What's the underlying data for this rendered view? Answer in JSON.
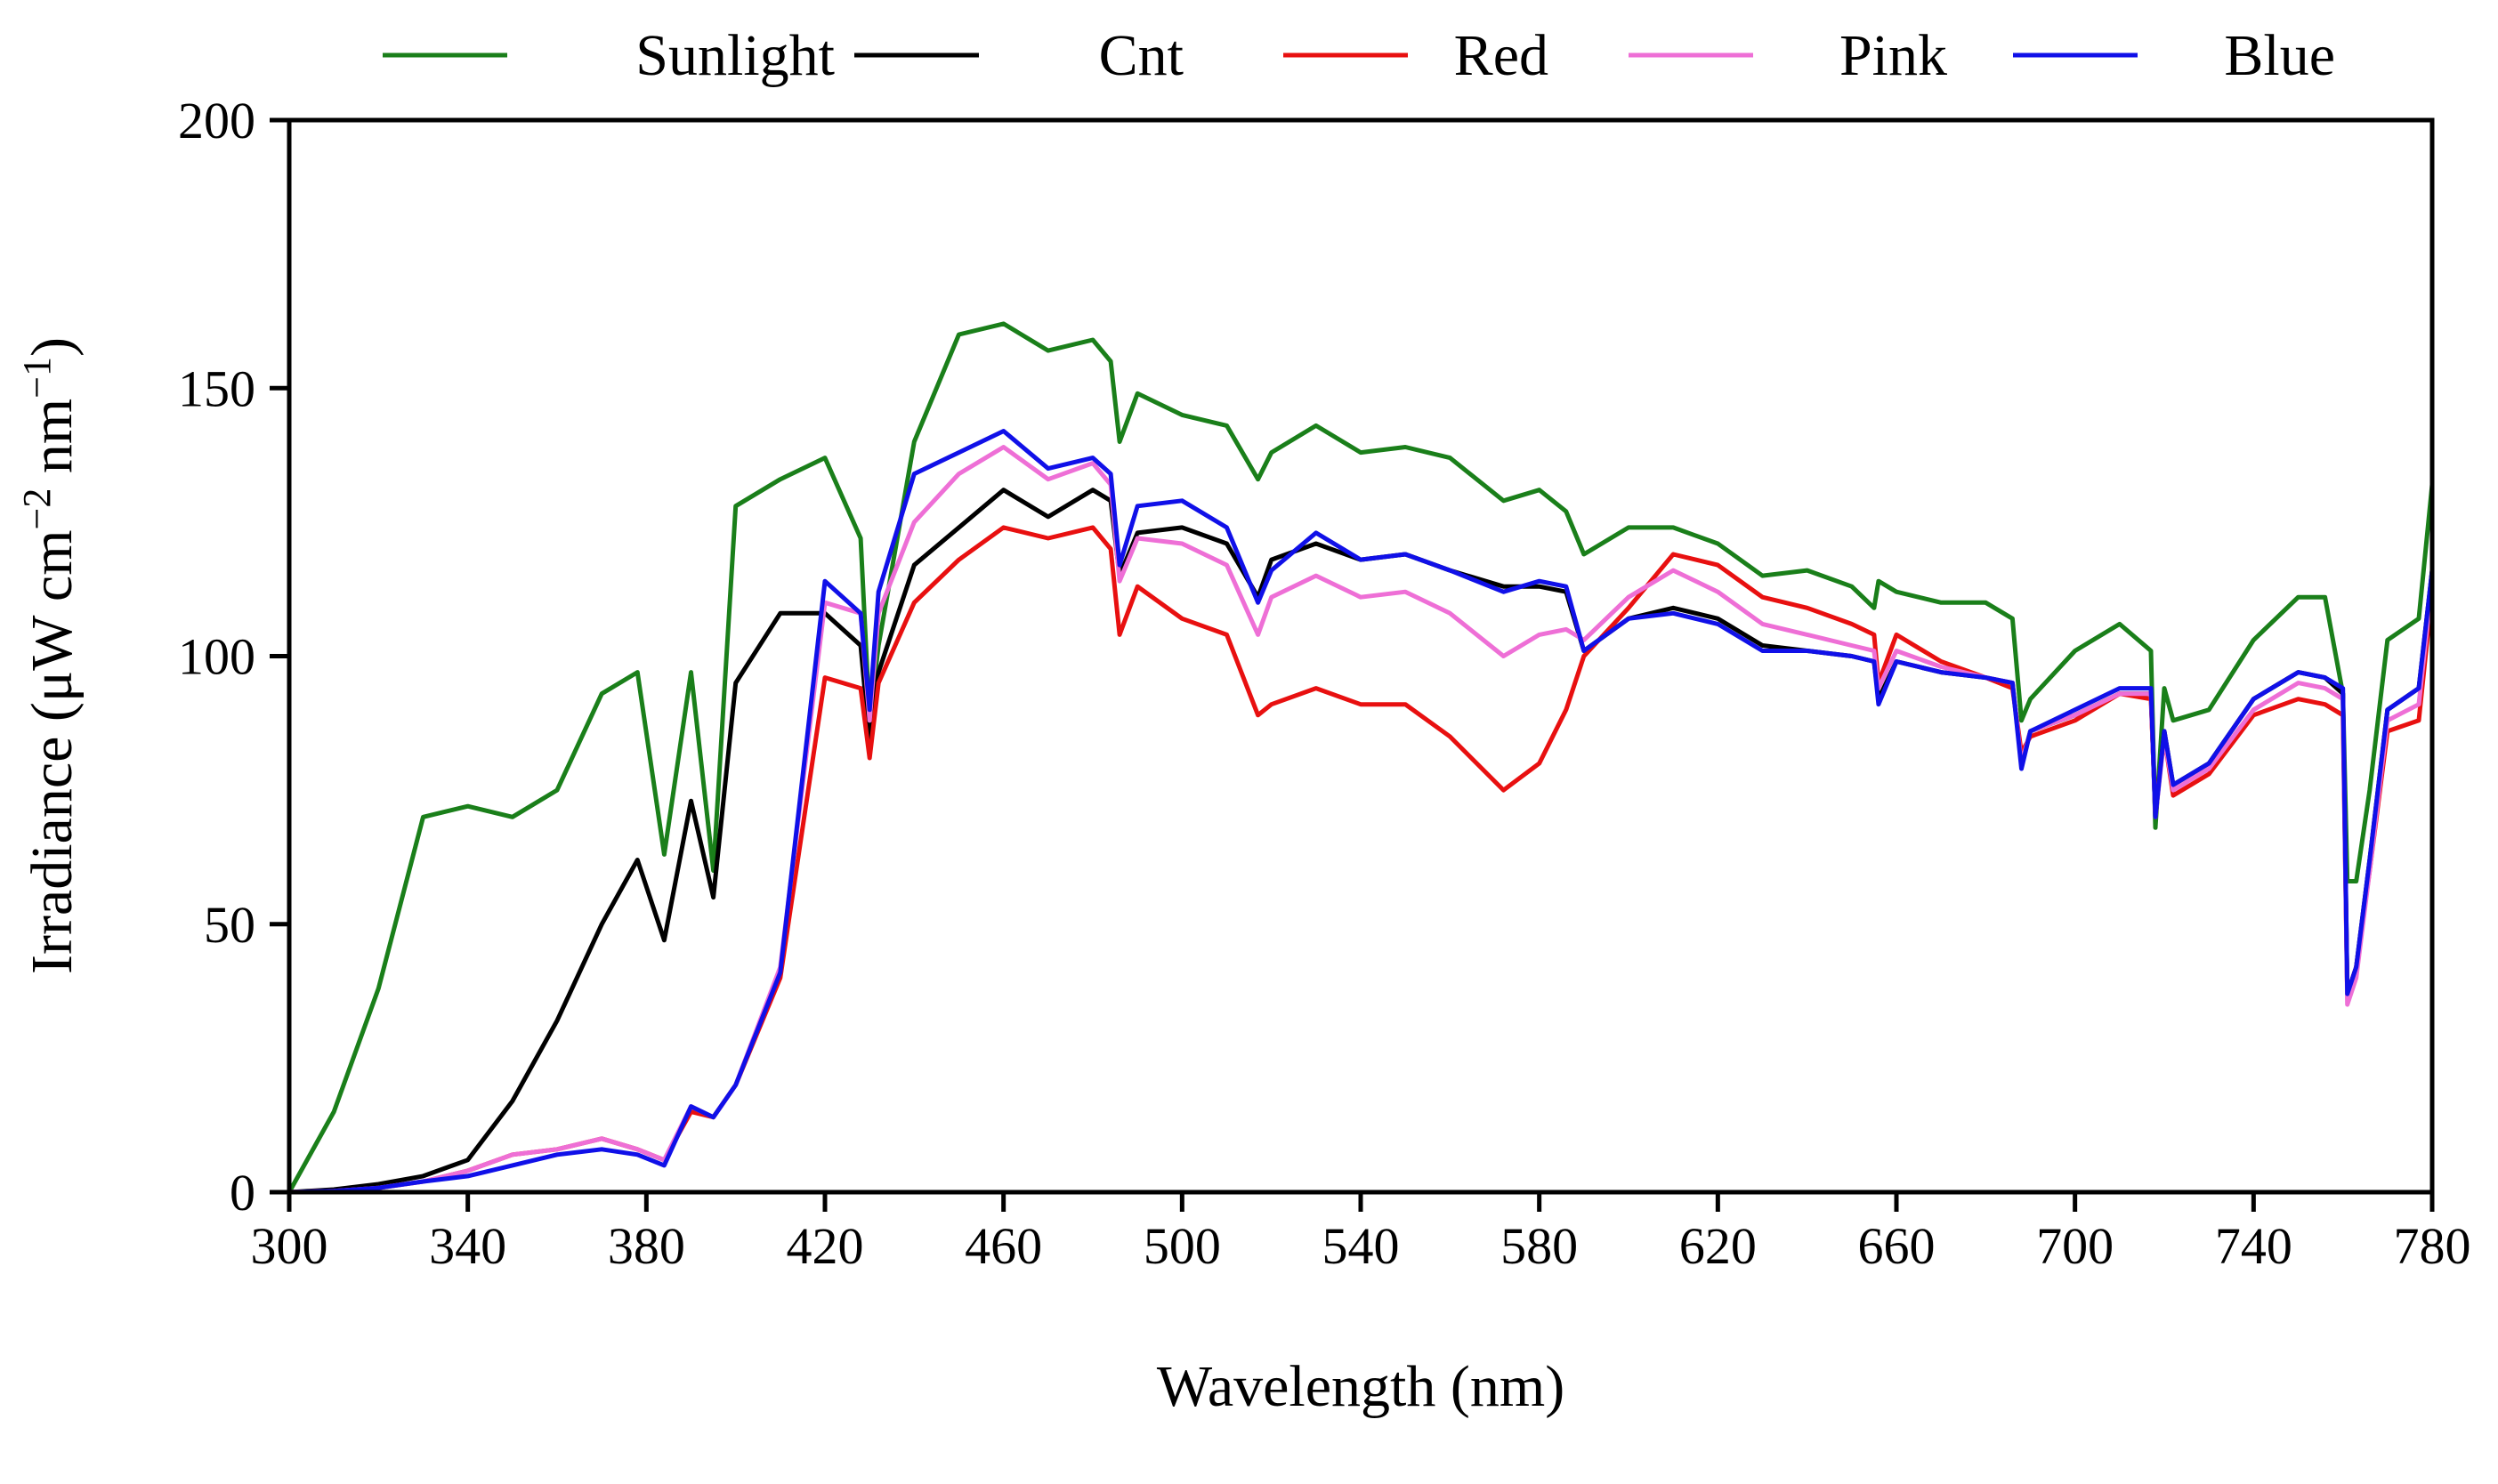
{
  "chart_data": {
    "type": "line",
    "title": "",
    "xlabel": "Wavelength (nm)",
    "ylabel_parts": {
      "base": "Irradiance (μW cm",
      "exp1": "−2",
      "mid": " nm",
      "exp2": "−1",
      "end": ")"
    },
    "xlim": [
      300,
      780
    ],
    "ylim": [
      0,
      200
    ],
    "x_ticks": [
      300,
      340,
      380,
      420,
      460,
      500,
      540,
      580,
      620,
      660,
      700,
      740,
      780
    ],
    "x_tick_labels": [
      "300",
      "340",
      "380",
      "420",
      "460",
      "500",
      "540",
      "580",
      "620",
      "660",
      "700",
      "740",
      "780"
    ],
    "y_ticks": [
      0,
      50,
      100,
      150,
      200
    ],
    "y_tick_labels": [
      "0",
      "50",
      "100",
      "150",
      "200"
    ],
    "legend_position": "top",
    "x": [
      300,
      310,
      320,
      330,
      340,
      350,
      360,
      370,
      378,
      384,
      390,
      395,
      400,
      410,
      420,
      428,
      430,
      432,
      440,
      450,
      460,
      470,
      480,
      484,
      486,
      490,
      500,
      510,
      517,
      520,
      530,
      540,
      550,
      560,
      572,
      580,
      586,
      590,
      600,
      610,
      620,
      630,
      640,
      650,
      655,
      656,
      660,
      670,
      680,
      686,
      688,
      690,
      700,
      710,
      717,
      718,
      720,
      722,
      730,
      740,
      750,
      756,
      760,
      761,
      763,
      766,
      770,
      777,
      780
    ],
    "series": [
      {
        "name": "Sunlight",
        "color": "#1a7f1a",
        "values": [
          0,
          15,
          38,
          70,
          72,
          70,
          75,
          93,
          97,
          63,
          97,
          60,
          128,
          133,
          137,
          122,
          88,
          102,
          140,
          160,
          162,
          157,
          159,
          155,
          140,
          149,
          145,
          143,
          133,
          138,
          143,
          138,
          139,
          137,
          129,
          131,
          127,
          119,
          124,
          124,
          121,
          115,
          116,
          113,
          109,
          114,
          112,
          110,
          110,
          107,
          88,
          92,
          101,
          106,
          101,
          68,
          94,
          88,
          90,
          103,
          111,
          111,
          93,
          58,
          58,
          75,
          103,
          107,
          132
        ]
      },
      {
        "name": "Cnt",
        "color": "#000000",
        "values": [
          0,
          0.5,
          1.5,
          3,
          6,
          17,
          32,
          50,
          62,
          47,
          73,
          55,
          95,
          108,
          108,
          102,
          84,
          97,
          117,
          124,
          131,
          126,
          131,
          129,
          115,
          123,
          124,
          121,
          111,
          118,
          121,
          118,
          119,
          116,
          113,
          113,
          112,
          101,
          107,
          109,
          107,
          102,
          101,
          100,
          99,
          92,
          99,
          97,
          96,
          95,
          80,
          86,
          89,
          93,
          93,
          70,
          86,
          76,
          80,
          92,
          97,
          96,
          93,
          37,
          42,
          62,
          90,
          94,
          116
        ]
      },
      {
        "name": "Red",
        "color": "#e81010",
        "values": [
          0,
          0.2,
          0.8,
          2,
          4,
          7,
          8,
          10,
          8,
          6,
          15,
          14,
          20,
          40,
          96,
          94,
          81,
          95,
          110,
          118,
          124,
          122,
          124,
          120,
          104,
          113,
          107,
          104,
          89,
          91,
          94,
          91,
          91,
          85,
          75,
          80,
          90,
          100,
          109,
          119,
          117,
          111,
          109,
          106,
          104,
          95,
          104,
          99,
          96,
          94,
          82,
          85,
          88,
          93,
          92,
          71,
          85,
          74,
          78,
          89,
          92,
          91,
          89,
          37,
          42,
          60,
          86,
          88,
          112
        ]
      },
      {
        "name": "Pink",
        "color": "#ee6fd6",
        "values": [
          0,
          0.2,
          0.8,
          2,
          4,
          7,
          8,
          10,
          8,
          6,
          16,
          14,
          20,
          42,
          110,
          108,
          88,
          108,
          125,
          134,
          139,
          133,
          136,
          132,
          114,
          122,
          121,
          117,
          104,
          111,
          115,
          111,
          112,
          108,
          100,
          104,
          105,
          103,
          111,
          116,
          112,
          106,
          104,
          102,
          101,
          94,
          101,
          98,
          96,
          95,
          80,
          86,
          89,
          93,
          93,
          70,
          85,
          75,
          79,
          90,
          95,
          94,
          92,
          35,
          40,
          60,
          88,
          91,
          114
        ]
      },
      {
        "name": "Blue",
        "color": "#1010e8",
        "values": [
          0,
          0.2,
          0.8,
          2,
          3,
          5,
          7,
          8,
          7,
          5,
          16,
          14,
          20,
          41,
          114,
          108,
          90,
          112,
          134,
          138,
          142,
          135,
          137,
          134,
          117,
          128,
          129,
          124,
          110,
          116,
          123,
          118,
          119,
          116,
          112,
          114,
          113,
          101,
          107,
          108,
          106,
          101,
          101,
          100,
          99,
          91,
          99,
          97,
          96,
          95,
          79,
          86,
          90,
          94,
          94,
          70,
          86,
          76,
          80,
          92,
          97,
          96,
          94,
          37,
          42,
          62,
          90,
          94,
          116
        ]
      }
    ]
  }
}
